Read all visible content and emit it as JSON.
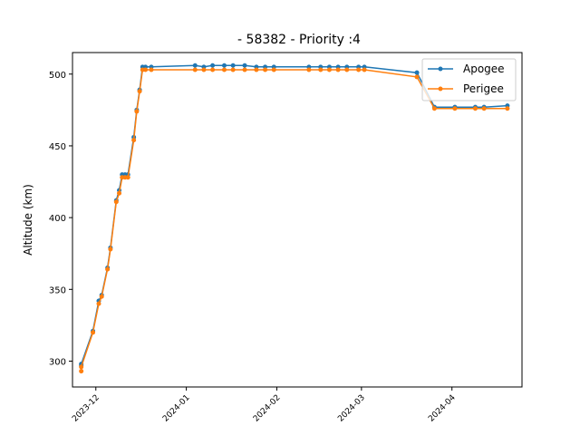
{
  "chart_data": {
    "type": "line",
    "title": "- 58382 - Priority :4",
    "xlabel": "",
    "ylabel": "Altitude (km)",
    "xlim": [
      "2023-11-23",
      "2024-04-25"
    ],
    "ylim": [
      282,
      515
    ],
    "xticks": [
      "2023-12",
      "2024-01",
      "2024-02",
      "2024-03",
      "2024-04"
    ],
    "yticks": [
      300,
      350,
      400,
      450,
      500
    ],
    "legend": "top-right",
    "grid": false,
    "series": [
      {
        "name": "Apogee",
        "color": "#1f77b4",
        "points": [
          [
            "2023-11-26",
            297
          ],
          [
            "2023-11-26",
            298
          ],
          [
            "2023-11-30",
            321
          ],
          [
            "2023-12-02",
            342
          ],
          [
            "2023-12-03",
            346
          ],
          [
            "2023-12-05",
            365
          ],
          [
            "2023-12-06",
            379
          ],
          [
            "2023-12-08",
            412
          ],
          [
            "2023-12-09",
            419
          ],
          [
            "2023-12-10",
            430
          ],
          [
            "2023-12-11",
            430
          ],
          [
            "2023-12-12",
            430
          ],
          [
            "2023-12-14",
            456
          ],
          [
            "2023-12-15",
            475
          ],
          [
            "2023-12-16",
            489
          ],
          [
            "2023-12-17",
            505
          ],
          [
            "2023-12-18",
            505
          ],
          [
            "2023-12-20",
            505
          ],
          [
            "2024-01-04",
            506
          ],
          [
            "2024-01-07",
            505
          ],
          [
            "2024-01-10",
            506
          ],
          [
            "2024-01-14",
            506
          ],
          [
            "2024-01-17",
            506
          ],
          [
            "2024-01-21",
            506
          ],
          [
            "2024-01-25",
            505
          ],
          [
            "2024-01-28",
            505
          ],
          [
            "2024-01-31",
            505
          ],
          [
            "2024-02-12",
            505
          ],
          [
            "2024-02-16",
            505
          ],
          [
            "2024-02-19",
            505
          ],
          [
            "2024-02-22",
            505
          ],
          [
            "2024-02-25",
            505
          ],
          [
            "2024-02-29",
            505
          ],
          [
            "2024-03-02",
            505
          ],
          [
            "2024-03-20",
            501
          ],
          [
            "2024-03-26",
            477
          ],
          [
            "2024-04-02",
            477
          ],
          [
            "2024-04-09",
            477
          ],
          [
            "2024-04-12",
            477
          ],
          [
            "2024-04-20",
            478
          ]
        ]
      },
      {
        "name": "Perigee",
        "color": "#ff7f0e",
        "points": [
          [
            "2023-11-26",
            293
          ],
          [
            "2023-11-26",
            296
          ],
          [
            "2023-11-30",
            320
          ],
          [
            "2023-12-02",
            340
          ],
          [
            "2023-12-03",
            345
          ],
          [
            "2023-12-05",
            364
          ],
          [
            "2023-12-06",
            378
          ],
          [
            "2023-12-08",
            411
          ],
          [
            "2023-12-09",
            417
          ],
          [
            "2023-12-10",
            428
          ],
          [
            "2023-12-11",
            428
          ],
          [
            "2023-12-12",
            428
          ],
          [
            "2023-12-14",
            454
          ],
          [
            "2023-12-15",
            474
          ],
          [
            "2023-12-16",
            488
          ],
          [
            "2023-12-17",
            503
          ],
          [
            "2023-12-18",
            503
          ],
          [
            "2023-12-20",
            503
          ],
          [
            "2024-01-04",
            503
          ],
          [
            "2024-01-07",
            503
          ],
          [
            "2024-01-10",
            503
          ],
          [
            "2024-01-14",
            503
          ],
          [
            "2024-01-17",
            503
          ],
          [
            "2024-01-21",
            503
          ],
          [
            "2024-01-25",
            503
          ],
          [
            "2024-01-28",
            503
          ],
          [
            "2024-01-31",
            503
          ],
          [
            "2024-02-12",
            503
          ],
          [
            "2024-02-16",
            503
          ],
          [
            "2024-02-19",
            503
          ],
          [
            "2024-02-22",
            503
          ],
          [
            "2024-02-25",
            503
          ],
          [
            "2024-02-29",
            503
          ],
          [
            "2024-03-02",
            503
          ],
          [
            "2024-03-20",
            498
          ],
          [
            "2024-03-26",
            476
          ],
          [
            "2024-04-02",
            476
          ],
          [
            "2024-04-09",
            476
          ],
          [
            "2024-04-12",
            476
          ],
          [
            "2024-04-20",
            476
          ]
        ]
      }
    ]
  }
}
